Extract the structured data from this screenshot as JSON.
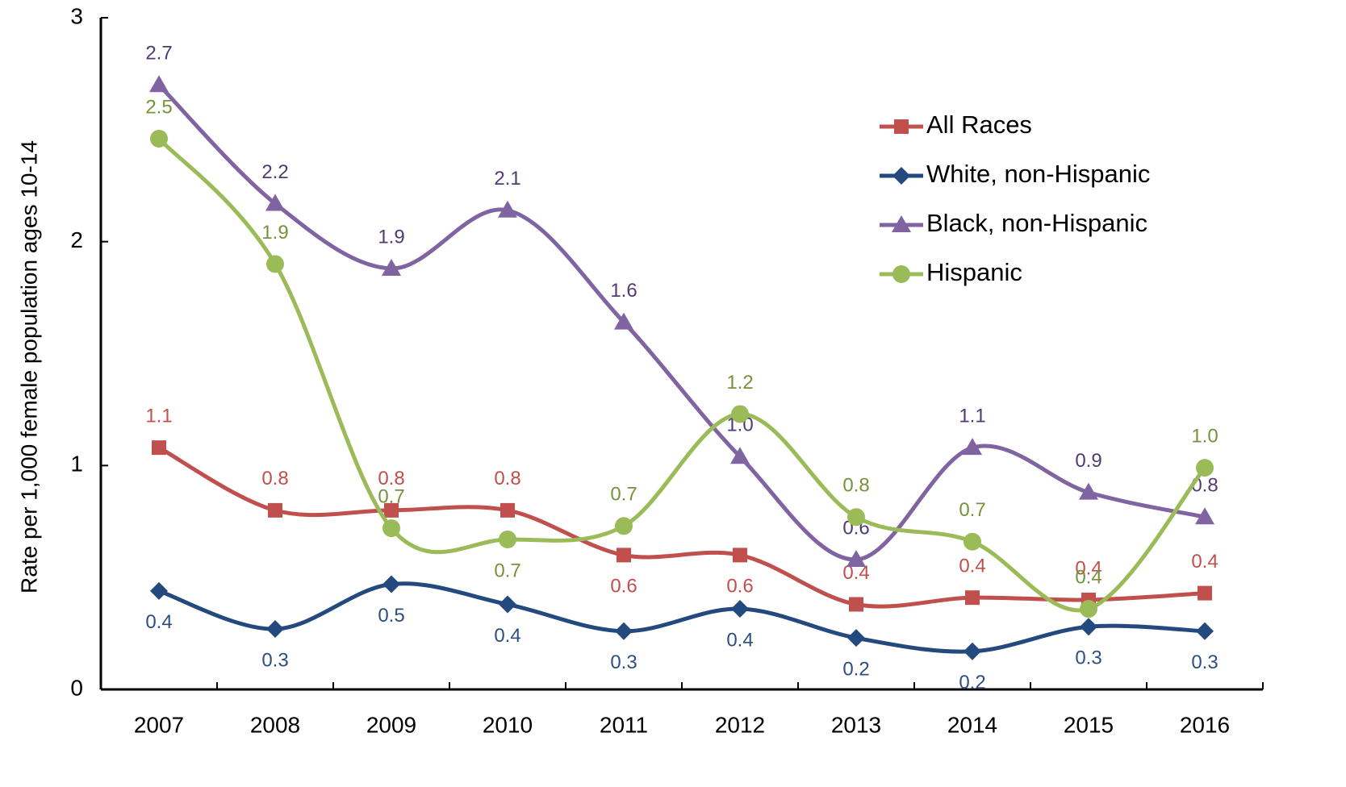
{
  "chart_data": {
    "type": "line",
    "y_label": "Rate per 1,000 female population ages 10-14",
    "categories": [
      "2007",
      "2008",
      "2009",
      "2010",
      "2011",
      "2012",
      "2013",
      "2014",
      "2015",
      "2016"
    ],
    "ylim": [
      0,
      3
    ],
    "yticks": [
      0,
      1,
      2,
      3
    ],
    "legend": "upper right",
    "series": [
      {
        "name": "All Races",
        "color": "#c0504d",
        "marker": "square",
        "values": [
          1.08,
          0.8,
          0.8,
          0.8,
          0.6,
          0.6,
          0.38,
          0.41,
          0.4,
          0.43
        ],
        "value_labels": [
          "1.1",
          "0.8",
          "0.8",
          "0.8",
          "0.6",
          "0.6",
          "0.4",
          "0.4",
          "0.4",
          "0.4"
        ]
      },
      {
        "name": "White, non-Hispanic",
        "color": "#23497e",
        "marker": "diamond",
        "values": [
          0.44,
          0.27,
          0.47,
          0.38,
          0.26,
          0.36,
          0.23,
          0.17,
          0.28,
          0.26
        ],
        "value_labels": [
          "0.4",
          "0.3",
          "0.5",
          "0.4",
          "0.3",
          "0.4",
          "0.2",
          "0.2",
          "0.3",
          "0.3"
        ]
      },
      {
        "name": "Black, non-Hispanic",
        "color": "#8064a2",
        "marker": "triangle",
        "values": [
          2.7,
          2.17,
          1.88,
          2.14,
          1.64,
          1.04,
          0.58,
          1.08,
          0.88,
          0.77
        ],
        "value_labels": [
          "2.7",
          "2.2",
          "1.9",
          "2.1",
          "1.6",
          "1.0",
          "0.6",
          "1.1",
          "0.9",
          "0.8"
        ]
      },
      {
        "name": "Hispanic",
        "color": "#9bbb59",
        "marker": "circle",
        "values": [
          2.46,
          1.9,
          0.72,
          0.67,
          0.73,
          1.23,
          0.77,
          0.66,
          0.36,
          0.99
        ],
        "value_labels": [
          "2.5",
          "1.9",
          "0.7",
          "0.7",
          "0.7",
          "1.2",
          "0.8",
          "0.7",
          "0.4",
          "1.0"
        ]
      }
    ]
  }
}
